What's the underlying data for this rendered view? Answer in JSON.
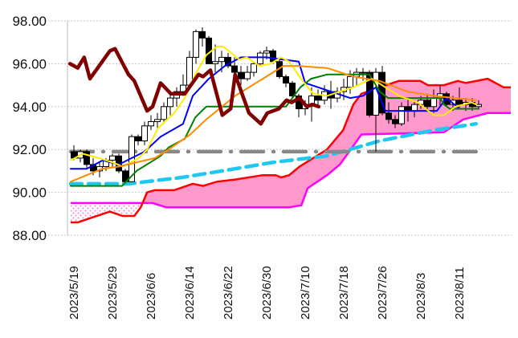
{
  "chart_data": {
    "type": "candlestick",
    "title": "",
    "ylim": [
      88,
      98
    ],
    "yticks": [
      "98.00",
      "96.00",
      "94.00",
      "92.00",
      "90.00",
      "88.00"
    ],
    "ytick_values": [
      98,
      96,
      94,
      92,
      90,
      88
    ],
    "xticks": [
      {
        "i": 0,
        "label": "2023/5/19"
      },
      {
        "i": 6,
        "label": "2023/5/29"
      },
      {
        "i": 12,
        "label": "2023/6/6"
      },
      {
        "i": 18,
        "label": "2023/6/14"
      },
      {
        "i": 24,
        "label": "2023/6/22"
      },
      {
        "i": 30,
        "label": "2023/6/30"
      },
      {
        "i": 36,
        "label": "2023/7/10"
      },
      {
        "i": 42,
        "label": "2023/7/18"
      },
      {
        "i": 48,
        "label": "2023/7/26"
      },
      {
        "i": 54,
        "label": "2023/8/3"
      },
      {
        "i": 60,
        "label": "2023/8/11"
      }
    ],
    "x_range": [
      -1,
      68
    ],
    "grid": "horizontal-dotted",
    "candles_ohlc": [
      [
        91.9,
        92.2,
        91.5,
        91.6
      ],
      [
        91.6,
        92.0,
        91.4,
        91.9
      ],
      [
        91.9,
        92.0,
        91.1,
        91.3
      ],
      [
        91.3,
        91.6,
        90.8,
        91.0
      ],
      [
        91.0,
        91.4,
        90.7,
        91.2
      ],
      [
        91.2,
        91.6,
        91.0,
        91.5
      ],
      [
        91.5,
        91.8,
        91.2,
        91.7
      ],
      [
        91.7,
        91.8,
        90.9,
        91.0
      ],
      [
        91.0,
        91.1,
        90.4,
        90.5
      ],
      [
        90.5,
        92.7,
        90.5,
        92.6
      ],
      [
        92.6,
        92.7,
        92.2,
        92.4
      ],
      [
        92.4,
        93.3,
        92.2,
        93.1
      ],
      [
        93.1,
        93.6,
        92.9,
        93.3
      ],
      [
        93.3,
        93.7,
        93.0,
        93.4
      ],
      [
        93.4,
        94.2,
        93.2,
        94.0
      ],
      [
        94.0,
        94.6,
        93.6,
        94.4
      ],
      [
        94.4,
        94.9,
        94.0,
        94.7
      ],
      [
        94.7,
        95.5,
        94.5,
        95.0
      ],
      [
        95.0,
        96.6,
        94.8,
        96.3
      ],
      [
        96.3,
        97.6,
        96.0,
        97.5
      ],
      [
        97.5,
        97.7,
        96.8,
        97.2
      ],
      [
        97.2,
        97.3,
        96.0,
        96.0
      ],
      [
        96.0,
        96.9,
        95.6,
        96.1
      ],
      [
        96.1,
        96.6,
        95.6,
        96.3
      ],
      [
        96.3,
        96.5,
        95.8,
        95.9
      ],
      [
        95.9,
        96.3,
        95.4,
        95.6
      ],
      [
        95.6,
        95.9,
        95.0,
        95.3
      ],
      [
        95.3,
        95.9,
        95.2,
        95.6
      ],
      [
        95.6,
        96.1,
        95.4,
        96.0
      ],
      [
        96.0,
        96.6,
        95.9,
        96.5
      ],
      [
        96.5,
        96.8,
        96.2,
        96.6
      ],
      [
        96.6,
        96.7,
        96.0,
        96.1
      ],
      [
        96.1,
        96.3,
        95.3,
        95.4
      ],
      [
        95.4,
        95.5,
        94.9,
        95.1
      ],
      [
        95.1,
        95.2,
        94.4,
        94.5
      ],
      [
        94.5,
        94.6,
        93.5,
        93.9
      ],
      [
        93.9,
        94.3,
        93.6,
        94.1
      ],
      [
        94.1,
        94.9,
        93.3,
        94.5
      ],
      [
        94.5,
        94.8,
        94.0,
        94.3
      ],
      [
        94.3,
        95.0,
        94.1,
        94.7
      ],
      [
        94.7,
        95.2,
        93.9,
        94.4
      ],
      [
        94.4,
        94.9,
        94.2,
        94.7
      ],
      [
        94.7,
        95.3,
        94.3,
        94.9
      ],
      [
        94.9,
        95.7,
        94.6,
        95.4
      ],
      [
        95.4,
        95.8,
        95.0,
        95.6
      ],
      [
        95.6,
        95.8,
        95.2,
        95.6
      ],
      [
        95.6,
        95.7,
        93.5,
        93.6
      ],
      [
        93.6,
        95.8,
        91.9,
        95.6
      ],
      [
        95.6,
        95.9,
        93.6,
        93.7
      ],
      [
        93.7,
        94.2,
        93.2,
        93.4
      ],
      [
        93.4,
        93.6,
        93.0,
        93.2
      ],
      [
        93.2,
        94.2,
        93.1,
        94.0
      ],
      [
        94.0,
        94.4,
        93.3,
        93.8
      ],
      [
        93.8,
        94.3,
        93.5,
        94.1
      ],
      [
        94.1,
        94.5,
        93.9,
        94.3
      ],
      [
        94.3,
        94.6,
        93.8,
        94.0
      ],
      [
        94.0,
        94.8,
        93.7,
        94.4
      ],
      [
        94.4,
        95.0,
        94.0,
        94.6
      ],
      [
        94.6,
        94.7,
        94.0,
        94.1
      ],
      [
        94.1,
        94.5,
        93.8,
        94.3
      ],
      [
        94.3,
        94.9,
        93.9,
        94.1
      ],
      [
        94.1,
        94.4,
        93.8,
        94.2
      ],
      [
        94.2,
        94.4,
        93.8,
        94.0
      ],
      [
        94.0,
        94.3,
        93.9,
        94.1
      ]
    ],
    "series": [
      {
        "name": "tenkan",
        "color": "#0000ff",
        "points": [
          [
            -0.5,
            91.1
          ],
          [
            2,
            91.1
          ],
          [
            4.5,
            91.5
          ],
          [
            7,
            91.3
          ],
          [
            11,
            91.9
          ],
          [
            13.5,
            92.6
          ],
          [
            17,
            93.2
          ],
          [
            18.5,
            94.5
          ],
          [
            21,
            95.3
          ],
          [
            23.5,
            95.9
          ],
          [
            26,
            96.3
          ],
          [
            30,
            96.3
          ],
          [
            35,
            96.1
          ],
          [
            36,
            95.1
          ],
          [
            40,
            94.7
          ],
          [
            43,
            94.4
          ],
          [
            45,
            94.5
          ],
          [
            47,
            94.9
          ],
          [
            48.5,
            93.8
          ],
          [
            56.5,
            93.8
          ],
          [
            58,
            94.4
          ],
          [
            60,
            93.9
          ],
          [
            63,
            93.9
          ]
        ]
      },
      {
        "name": "kijun",
        "color": "#008000",
        "points": [
          [
            -0.5,
            90.3
          ],
          [
            7.5,
            90.3
          ],
          [
            9.75,
            91.0
          ],
          [
            11.9,
            91.4
          ],
          [
            13.5,
            91.7
          ],
          [
            14.75,
            92.1
          ],
          [
            17.25,
            92.5
          ],
          [
            18.9,
            93.5
          ],
          [
            20.6,
            94.0
          ],
          [
            33,
            94.0
          ],
          [
            35.25,
            94.9
          ],
          [
            36.9,
            95.3
          ],
          [
            39.4,
            95.5
          ],
          [
            46,
            95.5
          ],
          [
            47.6,
            94.7
          ],
          [
            48.9,
            94.4
          ],
          [
            57,
            94.4
          ],
          [
            57.6,
            94.1
          ],
          [
            58.5,
            93.9
          ],
          [
            63,
            93.9
          ]
        ]
      },
      {
        "name": "ma-short",
        "color": "#ffee00",
        "points": [
          [
            -0.5,
            91.5
          ],
          [
            1.4,
            91.8
          ],
          [
            3.9,
            91.6
          ],
          [
            6,
            91.4
          ],
          [
            7.6,
            91.2
          ],
          [
            10.1,
            91.6
          ],
          [
            11.4,
            92.0
          ],
          [
            13.1,
            93.0
          ],
          [
            15.6,
            93.7
          ],
          [
            17.25,
            94.4
          ],
          [
            18.9,
            95.5
          ],
          [
            20.6,
            96.4
          ],
          [
            22.25,
            96.8
          ],
          [
            23.25,
            96.8
          ],
          [
            25.75,
            96.2
          ],
          [
            26.9,
            96.3
          ],
          [
            28.9,
            95.9
          ],
          [
            30.6,
            96.0
          ],
          [
            32.25,
            96.3
          ],
          [
            33.5,
            96.1
          ],
          [
            35.6,
            95.2
          ],
          [
            37.25,
            94.6
          ],
          [
            39.4,
            94.5
          ],
          [
            41.4,
            94.7
          ],
          [
            43.5,
            94.9
          ],
          [
            45.6,
            95.2
          ],
          [
            46.4,
            95.3
          ],
          [
            48.5,
            94.9
          ],
          [
            50.6,
            94.5
          ],
          [
            53.5,
            94.2
          ],
          [
            56,
            93.6
          ],
          [
            57.6,
            93.6
          ],
          [
            59.4,
            94.0
          ],
          [
            61.9,
            94.2
          ],
          [
            62.6,
            94.1
          ]
        ]
      },
      {
        "name": "ma-mid",
        "color": "#ff8c00",
        "points": [
          [
            -0.5,
            90.5
          ],
          [
            4.4,
            91.1
          ],
          [
            6.9,
            91.2
          ],
          [
            12.6,
            91.6
          ],
          [
            14.75,
            92.0
          ],
          [
            18.1,
            92.7
          ],
          [
            20.6,
            93.4
          ],
          [
            25.1,
            94.5
          ],
          [
            29.4,
            95.3
          ],
          [
            32.6,
            95.9
          ],
          [
            34.75,
            95.9
          ],
          [
            39.4,
            95.8
          ],
          [
            43.5,
            95.4
          ],
          [
            47.6,
            95.2
          ],
          [
            51.9,
            94.7
          ],
          [
            56,
            94.5
          ],
          [
            62.6,
            94.3
          ]
        ]
      },
      {
        "name": "chikou",
        "color": "#800000",
        "points": [
          [
            -0.6,
            96.0
          ],
          [
            0.6,
            95.8
          ],
          [
            1.6,
            96.3
          ],
          [
            2.5,
            95.3
          ],
          [
            5.6,
            96.6
          ],
          [
            6.4,
            96.7
          ],
          [
            8.5,
            95.5
          ],
          [
            9.4,
            95.2
          ],
          [
            11.4,
            93.8
          ],
          [
            12.25,
            94.0
          ],
          [
            13.5,
            95.1
          ],
          [
            15.1,
            94.6
          ],
          [
            17.25,
            94.6
          ],
          [
            19.4,
            95.5
          ],
          [
            20.1,
            95.4
          ],
          [
            21.25,
            95.7
          ],
          [
            23.1,
            93.6
          ],
          [
            24.4,
            93.9
          ],
          [
            25.1,
            95.5
          ],
          [
            27.25,
            93.7
          ],
          [
            29.1,
            93.2
          ],
          [
            30.1,
            93.7
          ],
          [
            31.9,
            93.9
          ],
          [
            33.1,
            94.3
          ],
          [
            33.9,
            94.2
          ],
          [
            35.1,
            94.4
          ],
          [
            36.25,
            94.0
          ],
          [
            37.1,
            94.1
          ],
          [
            38.1,
            94.0
          ]
        ]
      },
      {
        "name": "ma-long-dashed",
        "color": "#1ec8f0",
        "points": [
          [
            -0.5,
            90.4
          ],
          [
            8.5,
            90.4
          ],
          [
            16.9,
            90.7
          ],
          [
            25.1,
            91.1
          ],
          [
            31,
            91.4
          ],
          [
            39.4,
            91.7
          ],
          [
            47.6,
            92.4
          ],
          [
            56,
            92.9
          ],
          [
            62.6,
            93.2
          ]
        ]
      },
      {
        "name": "ma-very-long-dashdot",
        "color": "#888888",
        "points": [
          [
            -0.5,
            91.9
          ],
          [
            62.6,
            91.9
          ]
        ]
      }
    ],
    "cloud": {
      "fill_color": "#ff99cc",
      "senkou_a": {
        "name": "senkou-span-a",
        "color": "#ff0000",
        "points": [
          [
            -0.5,
            88.6
          ],
          [
            0.6,
            88.6
          ],
          [
            2.6,
            88.8
          ],
          [
            5.6,
            89.1
          ],
          [
            7.6,
            88.9
          ],
          [
            9.4,
            88.9
          ],
          [
            10.4,
            89.3
          ],
          [
            11.4,
            90.0
          ],
          [
            12.6,
            90.1
          ],
          [
            15.6,
            90.1
          ],
          [
            18.5,
            90.4
          ],
          [
            20.1,
            90.3
          ],
          [
            22.25,
            90.5
          ],
          [
            25.1,
            90.6
          ],
          [
            29.4,
            90.8
          ],
          [
            31.4,
            90.8
          ],
          [
            32.25,
            90.7
          ],
          [
            33.5,
            90.8
          ],
          [
            35.1,
            91.2
          ],
          [
            39.4,
            92.0
          ],
          [
            41.9,
            92.9
          ],
          [
            43.5,
            94.1
          ],
          [
            44.75,
            94.6
          ],
          [
            47.6,
            94.9
          ],
          [
            50.6,
            95.2
          ],
          [
            53.9,
            95.2
          ],
          [
            55.1,
            95.0
          ],
          [
            57.6,
            95.0
          ],
          [
            59.75,
            95.2
          ],
          [
            61,
            95.1
          ],
          [
            64.4,
            95.3
          ],
          [
            66.9,
            94.9
          ],
          [
            68,
            94.9
          ]
        ]
      },
      "senkou_b": {
        "name": "senkou-span-b",
        "color": "#ff00ff",
        "points": [
          [
            -0.5,
            89.5
          ],
          [
            12.25,
            89.5
          ],
          [
            14.4,
            89.3
          ],
          [
            33.5,
            89.3
          ],
          [
            35.4,
            89.4
          ],
          [
            36.4,
            90.2
          ],
          [
            39.4,
            90.8
          ],
          [
            41.4,
            91.3
          ],
          [
            43.1,
            92.0
          ],
          [
            44.75,
            92.7
          ],
          [
            57.6,
            92.8
          ],
          [
            60.6,
            93.4
          ],
          [
            64.4,
            93.7
          ],
          [
            68,
            93.7
          ]
        ]
      }
    }
  }
}
